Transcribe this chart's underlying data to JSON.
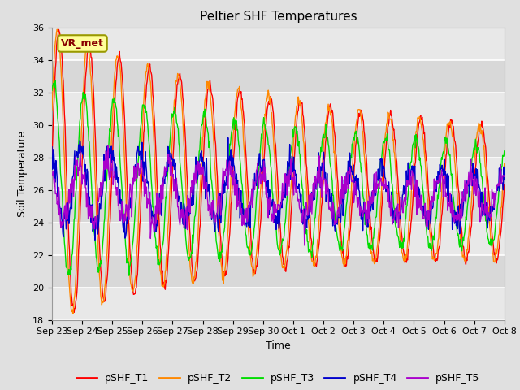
{
  "title": "Peltier SHF Temperatures",
  "xlabel": "Time",
  "ylabel": "Soil Temperature",
  "ylim": [
    18,
    36
  ],
  "yticks": [
    18,
    20,
    22,
    24,
    26,
    28,
    30,
    32,
    34,
    36
  ],
  "xtick_labels": [
    "Sep 23",
    "Sep 24",
    "Sep 25",
    "Sep 26",
    "Sep 27",
    "Sep 28",
    "Sep 29",
    "Sep 30",
    "Oct 1",
    "Oct 2",
    "Oct 3",
    "Oct 4",
    "Oct 5",
    "Oct 6",
    "Oct 7",
    "Oct 8"
  ],
  "annotation_text": "VR_met",
  "series_colors": {
    "pSHF_T1": "#ff0000",
    "pSHF_T2": "#ff8800",
    "pSHF_T3": "#00dd00",
    "pSHF_T4": "#0000cc",
    "pSHF_T5": "#aa00cc"
  },
  "background_color": "#e0e0e0",
  "plot_bg_light": "#e8e8e8",
  "plot_bg_dark": "#d4d4d4",
  "grid_color": "#ffffff",
  "title_fontsize": 11,
  "axis_label_fontsize": 9,
  "tick_fontsize": 8,
  "legend_fontsize": 9
}
